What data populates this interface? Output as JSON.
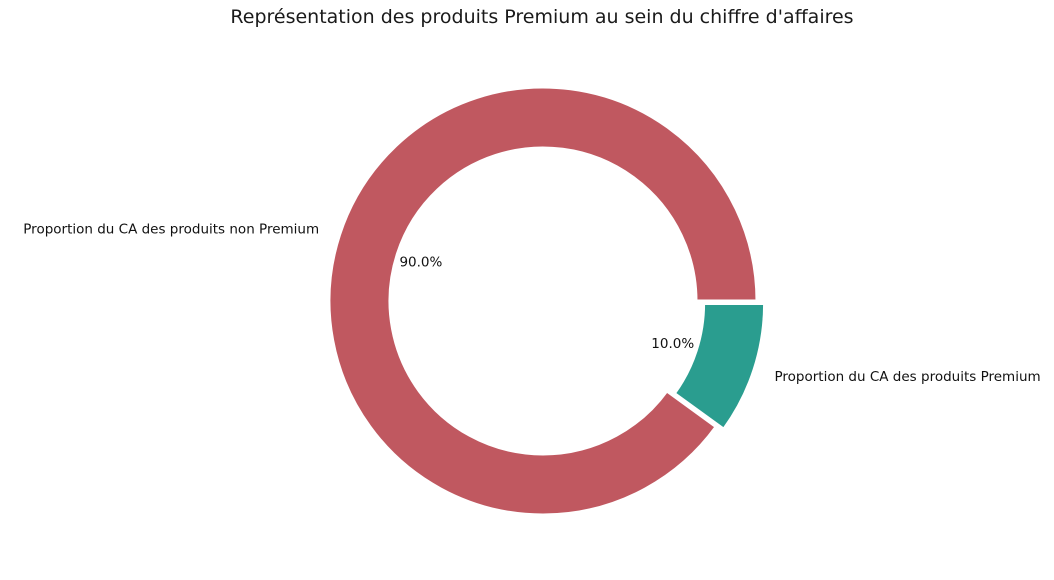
{
  "chart_data": {
    "type": "pie",
    "style": "donut",
    "title": "Représentation des produits Premium au sein du chiffre d'affaires",
    "categories": [
      "Proportion du CA des produits Premium",
      "Proportion du CA des produits non Premium"
    ],
    "values": [
      10.0,
      90.0
    ],
    "percent_labels": [
      "10.0%",
      "90.0%"
    ],
    "colors": [
      "#2a9d8f",
      "#c05860"
    ],
    "exploded": [
      true,
      false
    ],
    "legend": "none"
  }
}
